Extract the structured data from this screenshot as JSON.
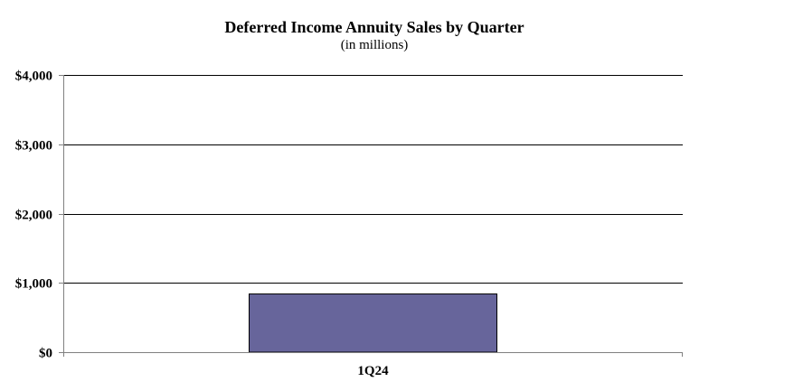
{
  "chart_data": {
    "type": "bar",
    "title": "Deferred Income Annuity Sales by Quarter",
    "subtitle": "(in millions)",
    "categories": [
      "1Q24"
    ],
    "values": [
      840
    ],
    "ylim": [
      0,
      4000
    ],
    "yticks": [
      0,
      1000,
      2000,
      3000,
      4000
    ],
    "ytick_labels": [
      "$0",
      "$1,000",
      "$2,000",
      "$3,000",
      "$4,000"
    ],
    "xlabel": "",
    "ylabel": "",
    "grid": true,
    "legend": "none",
    "bar_color": "#67659b"
  }
}
